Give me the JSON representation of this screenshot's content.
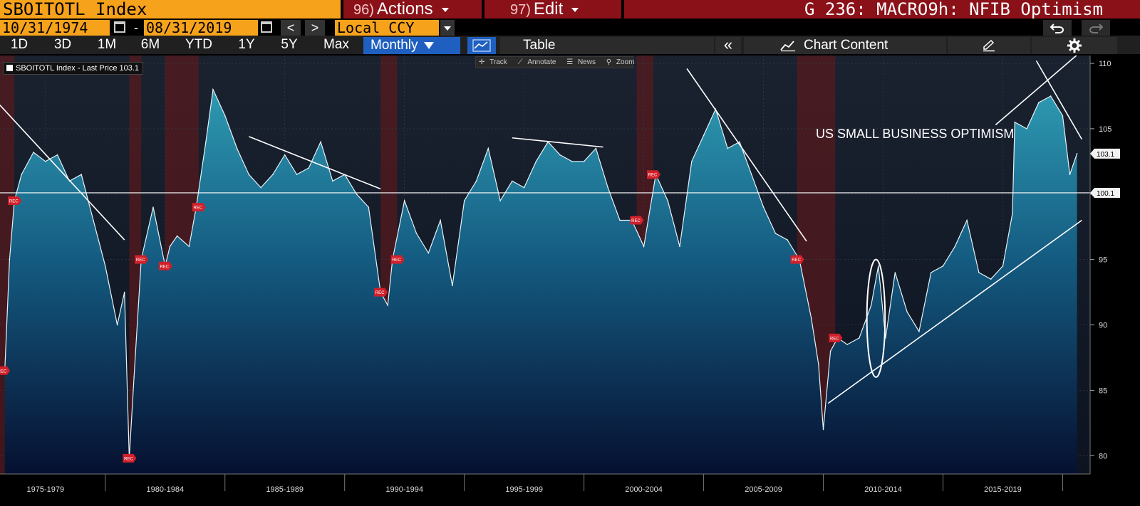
{
  "header": {
    "ticker": "SBOITOTL Index",
    "actions": {
      "num": "96)",
      "label": "Actions"
    },
    "edit": {
      "num": "97)",
      "label": "Edit"
    },
    "title": "G 236: MACRO9h: NFIB Optimism"
  },
  "dates": {
    "start": "10/31/1974",
    "end": "08/31/2019",
    "separator": "-",
    "currency": "Local CCY",
    "prev_label": "<",
    "next_label": ">"
  },
  "toolbar": {
    "periods": [
      "1D",
      "3D",
      "1M",
      "6M",
      "YTD",
      "1Y",
      "5Y",
      "Max"
    ],
    "frequency": "Monthly",
    "table_label": "Table",
    "collapse_label": "«",
    "chart_content_label": "Chart Content",
    "tools": [
      "Track",
      "Annotate",
      "News",
      "Zoom"
    ]
  },
  "legend": {
    "text": "SBOITOTL Index - Last Price 103.1"
  },
  "annotation": "US SMALL BUSINESS OPTIMISM",
  "colors": {
    "accent_orange": "#f7a21b",
    "header_red": "#8b1119",
    "selected_blue": "#1e5fbf",
    "recession_band": "#7a1c1c",
    "area_top": "#2a8ea6",
    "area_bottom": "#061030"
  },
  "icons": {
    "calendar": "calendar-icon",
    "undo": "undo-icon",
    "redo": "redo-icon",
    "chart_type": "line-chart-icon",
    "pencil": "pencil-icon",
    "gear": "gear-icon",
    "rec_marker": "REC"
  },
  "chart_data": {
    "type": "area",
    "title": "",
    "xlabel": "",
    "ylabel": "",
    "ylim": [
      78.6,
      110.6
    ],
    "y_ticks": [
      80,
      85,
      90,
      95,
      100,
      105,
      110
    ],
    "x_ticks": [
      "1975-1979",
      "1980-1984",
      "1985-1989",
      "1990-1994",
      "1995-1999",
      "2000-2004",
      "2005-2009",
      "2010-2014",
      "2015-2019"
    ],
    "last_price": 103.1,
    "reference_line": 100.1,
    "labels": {
      "last_price": "103.1",
      "reference_line": "100.1",
      "recession": "REC"
    },
    "recessions": [
      [
        1973.9,
        1975.2
      ],
      [
        1980.0,
        1980.5
      ],
      [
        1981.5,
        1982.9
      ],
      [
        1990.5,
        1991.2
      ],
      [
        2001.2,
        2001.9
      ],
      [
        2007.9,
        2009.5
      ]
    ],
    "series": [
      {
        "name": "SBOITOTL Index",
        "x": [
          1974.8,
          1975.0,
          1975.2,
          1975.5,
          1976.0,
          1976.5,
          1977.0,
          1977.5,
          1978.0,
          1978.5,
          1979.0,
          1979.5,
          1979.8,
          1980.0,
          1980.2,
          1980.5,
          1981.0,
          1981.5,
          1981.7,
          1982.0,
          1982.5,
          1982.8,
          1983.2,
          1983.5,
          1984.0,
          1984.5,
          1985.0,
          1985.5,
          1986.0,
          1986.5,
          1987.0,
          1987.5,
          1988.0,
          1988.5,
          1989.0,
          1989.5,
          1990.0,
          1990.5,
          1990.8,
          1991.0,
          1991.5,
          1992.0,
          1992.5,
          1993.0,
          1993.5,
          1994.0,
          1994.5,
          1995.0,
          1995.5,
          1996.0,
          1996.5,
          1997.0,
          1997.5,
          1998.0,
          1998.5,
          1999.0,
          1999.5,
          2000.0,
          2000.5,
          2001.0,
          2001.5,
          2002.0,
          2002.5,
          2003.0,
          2003.5,
          2004.0,
          2004.5,
          2005.0,
          2005.5,
          2006.0,
          2006.5,
          2007.0,
          2007.5,
          2008.0,
          2008.5,
          2008.8,
          2009.0,
          2009.3,
          2009.6,
          2010.0,
          2010.5,
          2011.0,
          2011.3,
          2011.6,
          2012.0,
          2012.5,
          2013.0,
          2013.5,
          2014.0,
          2014.5,
          2015.0,
          2015.5,
          2016.0,
          2016.5,
          2016.9,
          2017.0,
          2017.5,
          2018.0,
          2018.5,
          2019.0,
          2019.3,
          2019.6
        ],
        "values": [
          86.5,
          95.0,
          99.5,
          101.5,
          103.2,
          102.5,
          103.0,
          101.0,
          101.5,
          98.0,
          94.5,
          90.0,
          92.5,
          79.8,
          86.0,
          95.0,
          99.0,
          94.5,
          96.0,
          96.8,
          96.0,
          99.0,
          104.0,
          108.0,
          106.0,
          103.5,
          101.5,
          100.5,
          101.5,
          103.0,
          101.5,
          102.0,
          104.0,
          101.0,
          101.5,
          100.0,
          99.0,
          92.5,
          91.5,
          95.0,
          99.5,
          97.0,
          95.5,
          98.0,
          93.0,
          99.5,
          101.0,
          103.5,
          99.5,
          101.0,
          100.5,
          102.5,
          104.0,
          103.0,
          102.5,
          102.5,
          103.5,
          100.5,
          98.0,
          98.0,
          96.0,
          101.5,
          99.5,
          96.0,
          102.5,
          104.5,
          106.5,
          103.5,
          104.0,
          101.5,
          99.0,
          97.0,
          96.5,
          95.0,
          90.5,
          87.0,
          82.0,
          88.0,
          89.0,
          88.5,
          89.0,
          91.5,
          94.5,
          89.0,
          94.0,
          91.0,
          89.5,
          94.0,
          94.5,
          96.0,
          98.0,
          94.0,
          93.5,
          94.5,
          98.5,
          105.5,
          105.0,
          107.0,
          107.5,
          106.0,
          101.5,
          103.1
        ]
      }
    ],
    "annotation_lines": [
      {
        "x1": 1974.5,
        "y1": 107.0,
        "x2": 1979.8,
        "y2": 96.5
      },
      {
        "x1": 1985.0,
        "y1": 104.4,
        "x2": 1990.5,
        "y2": 100.4
      },
      {
        "x1": 1996.0,
        "y1": 104.3,
        "x2": 1999.8,
        "y2": 103.6
      },
      {
        "x1": 2003.3,
        "y1": 109.6,
        "x2": 2008.3,
        "y2": 96.4
      },
      {
        "x1": 2009.2,
        "y1": 84.0,
        "x2": 2019.8,
        "y2": 98.0
      },
      {
        "x1": 2016.2,
        "y1": 105.3,
        "x2": 2019.7,
        "y2": 110.8
      },
      {
        "x1": 2017.9,
        "y1": 110.2,
        "x2": 2019.8,
        "y2": 104.2
      }
    ],
    "annotation_ellipse": {
      "cx": 2011.2,
      "cy": 90.5,
      "rx": 0.38,
      "ry": 4.5
    }
  }
}
